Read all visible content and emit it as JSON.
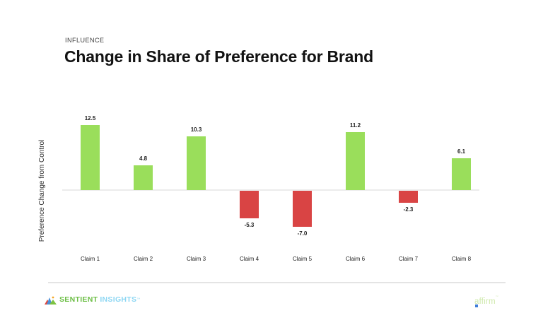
{
  "header": {
    "eyebrow": "INFLUENCE",
    "title": "Change in Share of Preference for Brand"
  },
  "chart_data": {
    "type": "bar",
    "categories": [
      "Claim 1",
      "Claim 2",
      "Claim 3",
      "Claim 4",
      "Claim 5",
      "Claim 6",
      "Claim 7",
      "Claim 8"
    ],
    "values": [
      12.5,
      4.8,
      10.3,
      -5.3,
      -7.0,
      11.2,
      -2.3,
      6.1
    ],
    "title": "Change in Share of Preference for Brand",
    "xlabel": "",
    "ylabel": "Preference Change from Control",
    "ylim": [
      -10,
      16
    ],
    "grid": false,
    "legend": "none",
    "value_labels": true,
    "positive_color": "#9ade5b",
    "negative_color": "#d94444",
    "axis_line_color": "#ececec"
  },
  "footer": {
    "brand": {
      "name_part1": "SENTIENT",
      "name_part2": "INSIGHTS",
      "trademark": "™",
      "green": "#6cbe45",
      "blue": "#8ed7f3"
    },
    "client": {
      "name": "affirm",
      "trademark": "™",
      "text_color": "#cfe9ab",
      "square_color": "#3f7ed8"
    }
  }
}
